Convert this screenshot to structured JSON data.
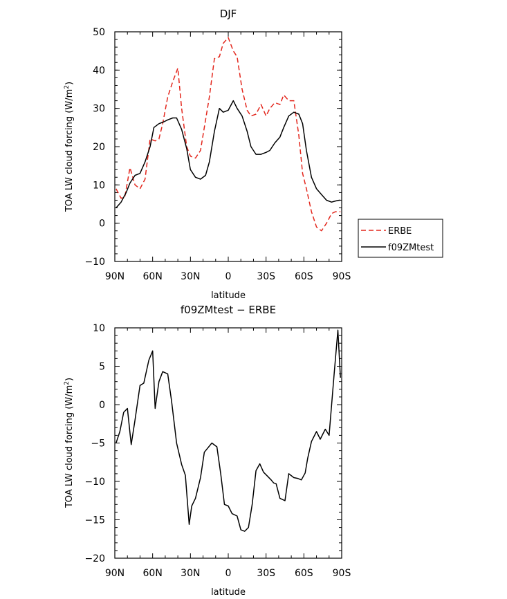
{
  "chart_data": [
    {
      "type": "line",
      "title": "DJF",
      "xlabel": "latitude",
      "ylabel": "TOA LW cloud forcing (W/m²)",
      "x_ticks": [
        "90N",
        "60N",
        "30N",
        "0",
        "30S",
        "60S",
        "90S"
      ],
      "x_tick_values": [
        -90,
        -60,
        -30,
        0,
        30,
        60,
        90
      ],
      "y_ticks": [
        "50",
        "40",
        "30",
        "20",
        "10",
        "0",
        "−10"
      ],
      "y_tick_values": [
        50,
        40,
        30,
        20,
        10,
        0,
        -10
      ],
      "xlim": [
        -90,
        90
      ],
      "ylim": [
        -10,
        50
      ],
      "x_direction": "north-to-south",
      "legend_position": "right",
      "grid": false,
      "series": [
        {
          "name": "ERBE",
          "color": "#e3261c",
          "dash": "dashed",
          "x": [
            -89,
            -85,
            -82,
            -78,
            -74,
            -70,
            -66,
            -62,
            -58,
            -55,
            -52,
            -48,
            -44,
            -40,
            -37,
            -33,
            -30,
            -26,
            -22,
            -18,
            -15,
            -11,
            -7,
            -4,
            0,
            4,
            7,
            11,
            15,
            18,
            22,
            26,
            30,
            33,
            37,
            41,
            44,
            48,
            52,
            56,
            59,
            62,
            66,
            70,
            74,
            78,
            82,
            85,
            88,
            89
          ],
          "y": [
            9,
            6.5,
            7,
            14.5,
            10,
            9,
            11.5,
            22,
            21.5,
            22,
            26,
            33,
            37,
            40.5,
            30,
            20,
            17.5,
            17,
            19,
            27,
            33,
            43,
            43.5,
            47,
            48.5,
            45,
            43.5,
            35,
            29.5,
            28,
            28.5,
            31,
            28,
            30,
            31.5,
            31,
            33.5,
            32,
            32,
            23,
            13,
            9,
            3,
            -1,
            -2,
            0,
            2.5,
            3,
            3,
            3
          ]
        },
        {
          "name": "f09ZMtest",
          "color": "#000000",
          "dash": "solid",
          "x": [
            -89,
            -85,
            -81,
            -78,
            -74,
            -70,
            -66,
            -62,
            -59,
            -55,
            -51,
            -48,
            -44,
            -41,
            -37,
            -33,
            -30,
            -26,
            -22,
            -18,
            -15,
            -11,
            -7,
            -4,
            0,
            4,
            7,
            11,
            15,
            18,
            22,
            26,
            30,
            33,
            37,
            41,
            44,
            48,
            52,
            56,
            59,
            62,
            66,
            70,
            74,
            78,
            82,
            85,
            88,
            89
          ],
          "y": [
            4,
            5.5,
            8,
            10.5,
            12.5,
            13,
            16,
            20,
            25,
            26,
            26.5,
            27,
            27.5,
            27.5,
            24.5,
            19.5,
            14,
            12,
            11.5,
            12.5,
            16,
            24,
            30,
            29,
            29.5,
            32,
            30,
            28,
            24,
            20,
            18,
            18,
            18.5,
            19,
            21,
            22.5,
            25,
            28,
            29,
            28.5,
            26,
            19,
            12,
            9,
            7.5,
            6,
            5.5,
            5.8,
            6,
            6
          ]
        }
      ]
    },
    {
      "type": "line",
      "title": "f09ZMtest − ERBE",
      "xlabel": "latitude",
      "ylabel": "TOA LW cloud forcing (W/m²)",
      "x_ticks": [
        "90N",
        "60N",
        "30N",
        "0",
        "30S",
        "60S",
        "90S"
      ],
      "x_tick_values": [
        -90,
        -60,
        -30,
        0,
        30,
        60,
        90
      ],
      "y_ticks": [
        "10",
        "5",
        "0",
        "−5",
        "−10",
        "−15",
        "−20"
      ],
      "y_tick_values": [
        10,
        5,
        0,
        -5,
        -10,
        -15,
        -20
      ],
      "xlim": [
        -90,
        90
      ],
      "ylim": [
        -20,
        10
      ],
      "x_direction": "north-to-south",
      "grid": false,
      "series": [
        {
          "name": "",
          "color": "#000000",
          "dash": "solid",
          "x": [
            -89,
            -86,
            -83,
            -80,
            -77,
            -74,
            -70,
            -67,
            -63,
            -60,
            -58,
            -55,
            -52,
            -48,
            -45,
            -41,
            -37,
            -34,
            -31,
            -29,
            -26,
            -22,
            -19,
            -16,
            -13,
            -9,
            -6,
            -3,
            0,
            3,
            7,
            10,
            13,
            16,
            19,
            22,
            25,
            28,
            31,
            34,
            36,
            38,
            41,
            45,
            48,
            52,
            55,
            58,
            61,
            63,
            66,
            70,
            73,
            77,
            80,
            84,
            87,
            89
          ],
          "y": [
            -5,
            -3.5,
            -1,
            -0.5,
            -5.2,
            -2,
            2.5,
            2.8,
            5.8,
            7,
            -0.5,
            3,
            4.3,
            4,
            0.5,
            -5,
            -7.8,
            -9.2,
            -15.6,
            -13.2,
            -12.2,
            -9.5,
            -6.2,
            -5.6,
            -5,
            -5.5,
            -9,
            -13,
            -13.2,
            -14.2,
            -14.5,
            -16.3,
            -16.5,
            -16,
            -13,
            -8.6,
            -7.7,
            -8.8,
            -9.3,
            -9.8,
            -10.2,
            -10.3,
            -12.2,
            -12.5,
            -9,
            -9.5,
            -9.6,
            -9.8,
            -8.9,
            -7,
            -4.8,
            -3.5,
            -4.5,
            -3.2,
            -4,
            4,
            9.7,
            3.5
          ]
        }
      ]
    }
  ]
}
